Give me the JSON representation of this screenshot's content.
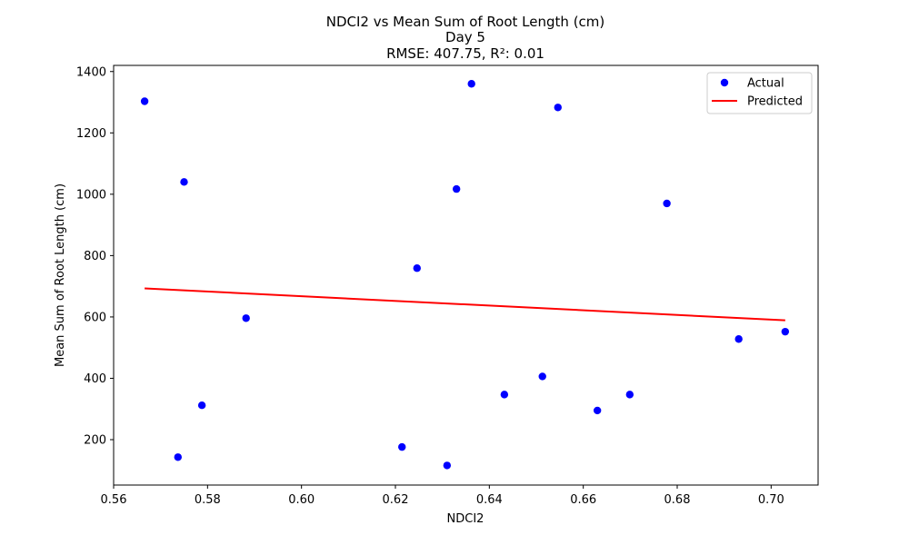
{
  "chart_data": {
    "type": "scatter",
    "title_lines": [
      "NDCI2 vs Mean Sum of Root Length (cm)",
      "Day 5",
      "RMSE: 407.75, R²: 0.01"
    ],
    "xlabel": "NDCI2",
    "ylabel": "Mean Sum of Root Length (cm)",
    "xlim": [
      0.56,
      0.71
    ],
    "ylim": [
      52,
      1420
    ],
    "xticks": [
      0.56,
      0.58,
      0.6,
      0.62,
      0.64,
      0.66,
      0.68,
      0.7
    ],
    "xtick_labels": [
      "0.56",
      "0.58",
      "0.60",
      "0.62",
      "0.64",
      "0.66",
      "0.68",
      "0.70"
    ],
    "yticks": [
      200,
      400,
      600,
      800,
      1000,
      1200,
      1400
    ],
    "ytick_labels": [
      "200",
      "400",
      "600",
      "800",
      "1000",
      "1200",
      "1400"
    ],
    "grid": false,
    "legend_position": "top-right",
    "series": [
      {
        "name": "Actual",
        "kind": "scatter",
        "color": "#0000ff",
        "points": [
          {
            "x": 0.5666,
            "y": 1303
          },
          {
            "x": 0.5737,
            "y": 143
          },
          {
            "x": 0.575,
            "y": 1040
          },
          {
            "x": 0.5788,
            "y": 312
          },
          {
            "x": 0.5882,
            "y": 596
          },
          {
            "x": 0.6214,
            "y": 176
          },
          {
            "x": 0.6246,
            "y": 759
          },
          {
            "x": 0.631,
            "y": 116
          },
          {
            "x": 0.633,
            "y": 1017
          },
          {
            "x": 0.6362,
            "y": 1360
          },
          {
            "x": 0.6432,
            "y": 347
          },
          {
            "x": 0.6513,
            "y": 406
          },
          {
            "x": 0.6546,
            "y": 1283
          },
          {
            "x": 0.663,
            "y": 295
          },
          {
            "x": 0.6699,
            "y": 347
          },
          {
            "x": 0.6778,
            "y": 970
          },
          {
            "x": 0.6931,
            "y": 528
          },
          {
            "x": 0.703,
            "y": 552
          }
        ]
      },
      {
        "name": "Predicted",
        "kind": "line",
        "color": "#ff0000",
        "points": [
          {
            "x": 0.5666,
            "y": 693
          },
          {
            "x": 0.703,
            "y": 589
          }
        ]
      }
    ]
  }
}
